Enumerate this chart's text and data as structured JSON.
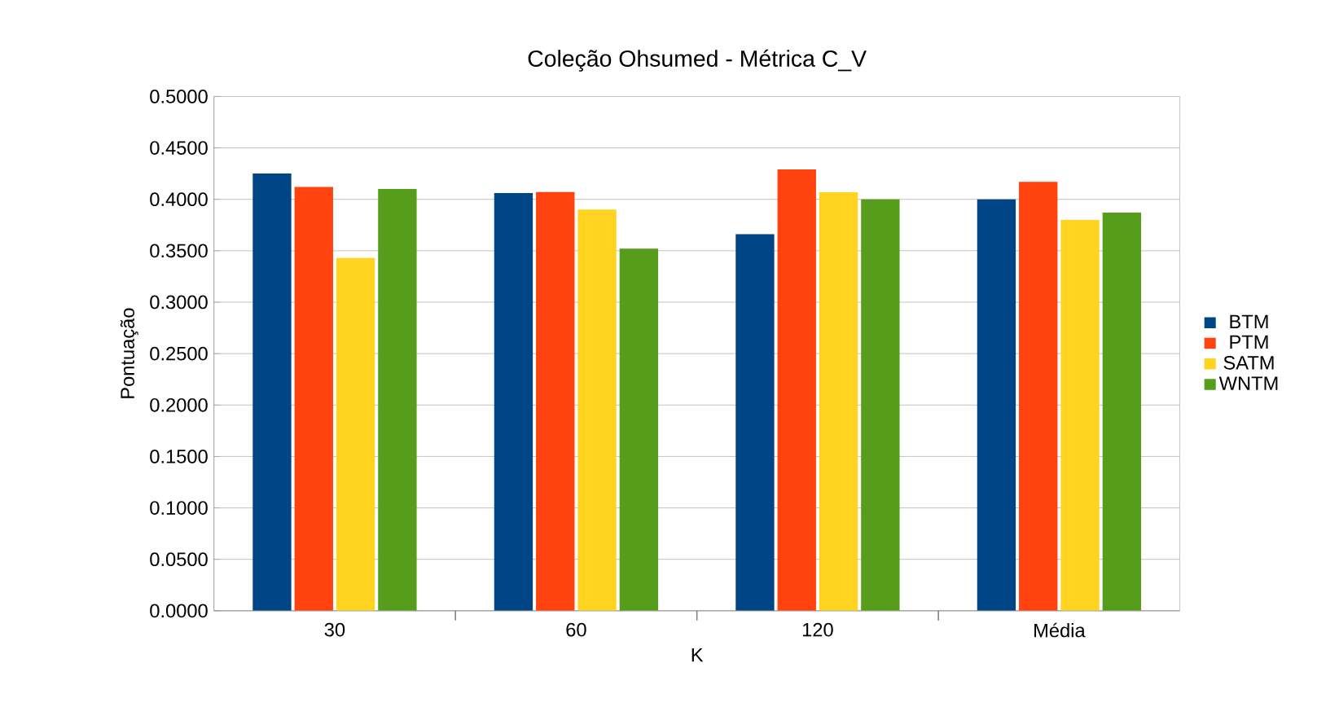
{
  "chart_data": {
    "type": "bar",
    "title": "Coleção Ohsumed - Métrica C_V",
    "xlabel": "K",
    "ylabel": "Pontuação",
    "categories": [
      "30",
      "60",
      "120",
      "Média"
    ],
    "series": [
      {
        "name": "BTM",
        "color": "#004586",
        "values": [
          0.425,
          0.406,
          0.366,
          0.4
        ]
      },
      {
        "name": "PTM",
        "color": "#ff420e",
        "values": [
          0.412,
          0.407,
          0.429,
          0.417
        ]
      },
      {
        "name": "SATM",
        "color": "#ffd320",
        "values": [
          0.343,
          0.39,
          0.407,
          0.38
        ]
      },
      {
        "name": "WNTM",
        "color": "#579d1c",
        "values": [
          0.41,
          0.352,
          0.4,
          0.387
        ]
      }
    ],
    "ylim": [
      0,
      0.5
    ],
    "yticks": [
      {
        "value": 0,
        "label": "0.0000"
      },
      {
        "value": 0.05,
        "label": "0.0500"
      },
      {
        "value": 0.1,
        "label": "0.1000"
      },
      {
        "value": 0.15,
        "label": "0.1500"
      },
      {
        "value": 0.2,
        "label": "0.2000"
      },
      {
        "value": 0.25,
        "label": "0.2500"
      },
      {
        "value": 0.3,
        "label": "0.3000"
      },
      {
        "value": 0.35,
        "label": "0.3500"
      },
      {
        "value": 0.4,
        "label": "0.4000"
      },
      {
        "value": 0.45,
        "label": "0.4500"
      },
      {
        "value": 0.5,
        "label": "0.5000"
      }
    ],
    "grid": "y",
    "legend": "right"
  }
}
